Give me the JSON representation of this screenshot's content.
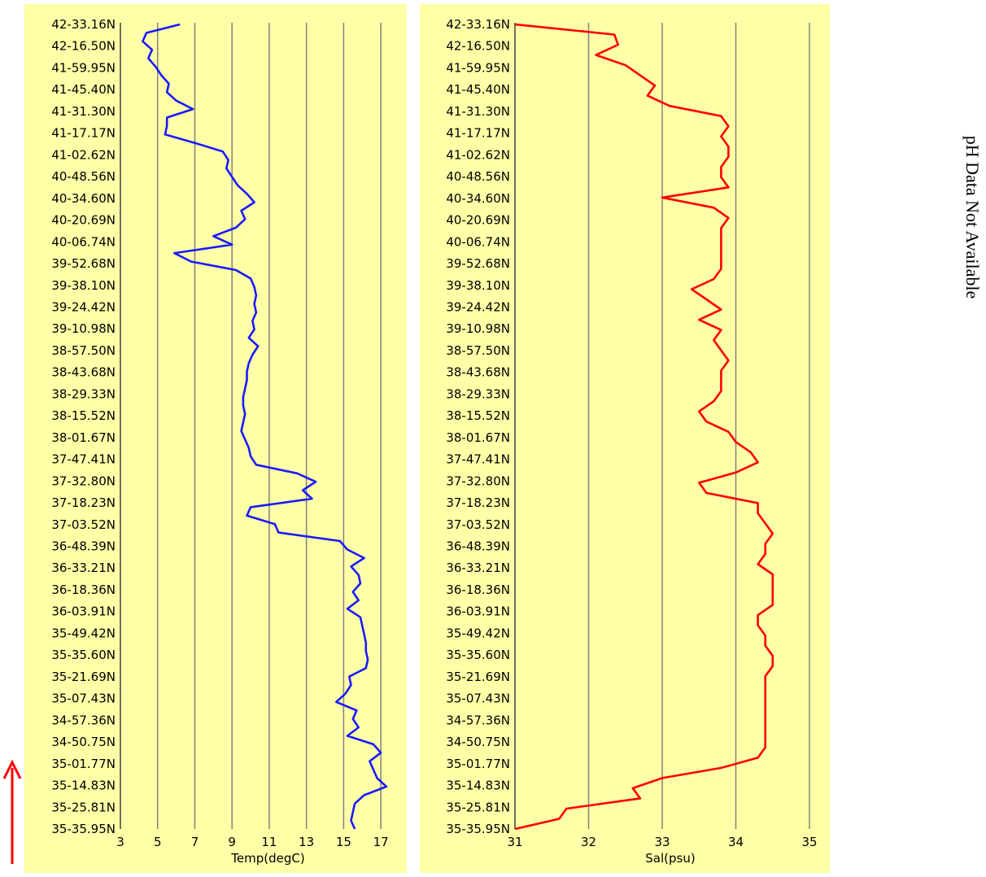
{
  "side_note": "pH Data Not Available",
  "colors": {
    "panel_bg": "#ffffa8",
    "grid": "#808080",
    "temp_line": "#1a1aff",
    "sal_line": "#ff0000",
    "arrow": "#ff0000"
  },
  "direction_arrow": "up-red-arrow",
  "latitude_labels": [
    "42-33.16N",
    "42-16.50N",
    "41-59.95N",
    "41-45.40N",
    "41-31.30N",
    "41-17.17N",
    "41-02.62N",
    "40-48.56N",
    "40-34.60N",
    "40-20.69N",
    "40-06.74N",
    "39-52.68N",
    "39-38.10N",
    "39-24.42N",
    "39-10.98N",
    "38-57.50N",
    "38-43.68N",
    "38-29.33N",
    "38-15.52N",
    "38-01.67N",
    "37-47.41N",
    "37-32.80N",
    "37-18.23N",
    "37-03.52N",
    "36-48.39N",
    "36-33.21N",
    "36-18.36N",
    "36-03.91N",
    "35-49.42N",
    "35-35.60N",
    "35-21.69N",
    "35-07.43N",
    "34-57.36N",
    "34-50.75N",
    "35-01.77N",
    "35-14.83N",
    "35-25.81N",
    "35-35.95N"
  ],
  "chart_data": [
    {
      "type": "line",
      "xlabel": "Temp(degC)",
      "xlim": [
        3,
        18
      ],
      "xticks": [
        3,
        5,
        7,
        9,
        11,
        13,
        15,
        17
      ],
      "series": [
        {
          "values": [
            6.2,
            4.4,
            4.2,
            4.7,
            4.5,
            4.9,
            5.2,
            5.6,
            5.5,
            6.0,
            6.9,
            5.5,
            5.5,
            5.4,
            7.0,
            8.5,
            8.8,
            8.7,
            9.0,
            9.3,
            9.8,
            10.2,
            9.5,
            9.7,
            9.2,
            8.0,
            9.0,
            5.9,
            6.8,
            9.2,
            10.0,
            10.2,
            10.3,
            10.2,
            10.3,
            10.1,
            10.2,
            9.9,
            10.4,
            10.1,
            9.9,
            9.8,
            9.8,
            9.7,
            9.6,
            9.6,
            9.7,
            9.6,
            9.5,
            9.7,
            9.9,
            10.0,
            10.3,
            12.5,
            13.5,
            12.8,
            13.3,
            10.0,
            9.8,
            11.3,
            11.5,
            14.8,
            15.2,
            16.1,
            15.4,
            15.8,
            15.9,
            15.5,
            15.8,
            15.2,
            15.9,
            16.0,
            16.1,
            16.2,
            16.2,
            16.3,
            16.2,
            15.3,
            15.4,
            15.1,
            14.6,
            15.7,
            15.5,
            15.8,
            15.2,
            16.6,
            17.0,
            16.4,
            16.6,
            16.8,
            17.3,
            16.1,
            15.6,
            15.5,
            15.4,
            15.6
          ]
        }
      ]
    },
    {
      "type": "line",
      "xlabel": "Sal(psu)",
      "xlim": [
        31,
        35
      ],
      "xticks": [
        31,
        32,
        33,
        34,
        35
      ],
      "series": [
        {
          "values": [
            31.0,
            32.35,
            32.4,
            32.1,
            32.5,
            32.7,
            32.9,
            32.8,
            33.1,
            33.8,
            33.9,
            33.8,
            33.9,
            33.9,
            33.8,
            33.8,
            33.9,
            33.0,
            33.7,
            33.9,
            33.8,
            33.8,
            33.8,
            33.8,
            33.8,
            33.7,
            33.4,
            33.6,
            33.8,
            33.5,
            33.8,
            33.7,
            33.8,
            33.9,
            33.8,
            33.8,
            33.8,
            33.7,
            33.5,
            33.6,
            33.9,
            34.0,
            34.2,
            34.3,
            34.0,
            33.5,
            33.6,
            34.3,
            34.3,
            34.4,
            34.5,
            34.4,
            34.4,
            34.3,
            34.5,
            34.5,
            34.5,
            34.5,
            34.3,
            34.3,
            34.4,
            34.4,
            34.5,
            34.5,
            34.4,
            34.4,
            34.4,
            34.4,
            34.4,
            34.4,
            34.4,
            34.4,
            34.3,
            33.8,
            33.0,
            32.6,
            32.7,
            31.7,
            31.6,
            31.0
          ]
        }
      ]
    }
  ]
}
